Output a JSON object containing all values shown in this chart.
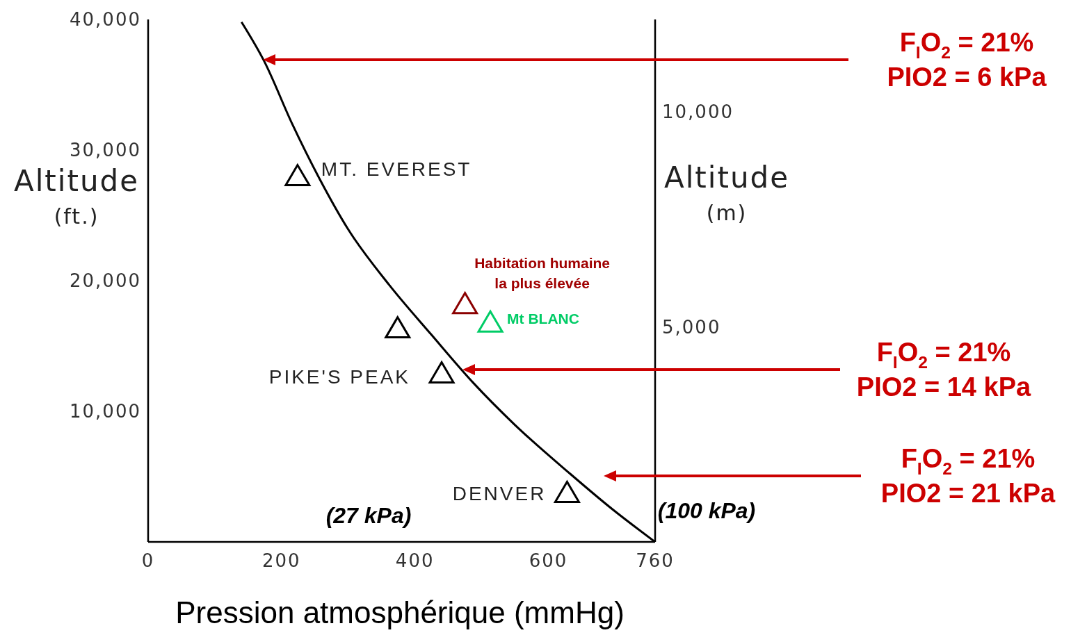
{
  "chart_data": {
    "type": "line",
    "xlabel": "Pression atmosphérique (mmHg)",
    "ylabel": "Altitude\n(ft.)",
    "y2label": "Altitude\n(m)",
    "xlim": [
      0,
      760
    ],
    "xticks": [
      0,
      200,
      400,
      600,
      760
    ],
    "ylim": [
      0,
      40000
    ],
    "yticks": [
      {
        "value": 10000,
        "label": "10,000"
      },
      {
        "value": 20000,
        "label": "20,000"
      },
      {
        "value": 30000,
        "label": "30,000"
      },
      {
        "value": 40000,
        "label": "40,000"
      }
    ],
    "y2lim": [
      0,
      12150
    ],
    "y2ticks": [
      {
        "value": 5000,
        "label": "5,000"
      },
      {
        "value": 10000,
        "label": "10,000"
      }
    ],
    "grid": false,
    "marker": "triangle",
    "line_style": "solid",
    "series": [
      {
        "type": "line",
        "color": "#000000",
        "marker": "none",
        "x": [
          140,
          174,
          216,
          258,
          299,
          361,
          424,
          487,
          549,
          633,
          696,
          760
        ],
        "values": [
          39800,
          36800,
          32000,
          27700,
          24000,
          19700,
          15900,
          12200,
          9000,
          5200,
          2500,
          0
        ]
      },
      {
        "type": "scatter",
        "x": [
          224,
          374,
          440,
          628,
          475,
          513
        ],
        "values": [
          28000,
          16350,
          12900,
          3750,
          18200,
          16800
        ],
        "colors": [
          "#000000",
          "#000000",
          "#000000",
          "#000000",
          "#8b0000",
          "#00cc66"
        ]
      }
    ],
    "annotations": [
      {
        "text": "MT. EVEREST",
        "x": 224,
        "y": 28000
      },
      {
        "text": "PIKE'S PEAK",
        "x": 440,
        "y": 12900
      },
      {
        "text": "DENVER",
        "x": 628,
        "y": 3750
      },
      {
        "text": "Habitation humaine\nla plus élevée",
        "x": 475,
        "y": 18200
      },
      {
        "text": "Mt BLANC",
        "x": 513,
        "y": 16800
      },
      "(27 kPa)",
      "(100 kPa)",
      "F$_{I}$O$_{2}$ = 21%\nPIO2 = 6 kPa",
      "F$_{I}$O$_{2}$ = 21%\nPIO2 = 14 kPa",
      "F$_{I}$O$_{2}$ = 21%\nPIO2 = 21 kPa"
    ]
  }
}
